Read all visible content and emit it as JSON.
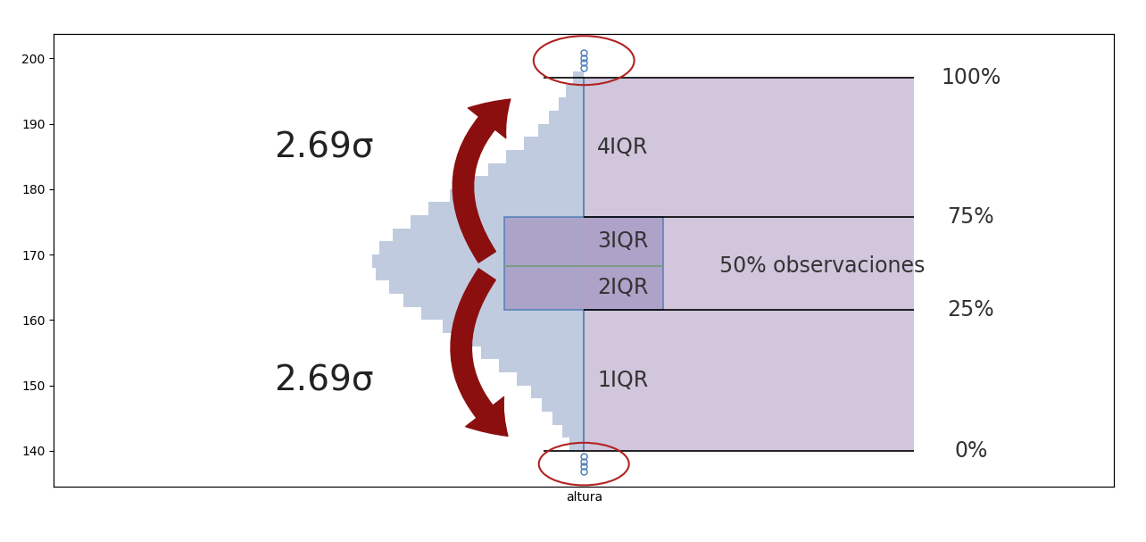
{
  "chart_data": {
    "type": "boxplot",
    "categories": [
      "altura"
    ],
    "ylim": [
      134.5,
      203.7
    ],
    "yticks": [
      140,
      150,
      160,
      170,
      180,
      190,
      200
    ],
    "grid": false,
    "tick_labels": "y",
    "box": {
      "whislo": 140,
      "q1": 161.5,
      "med": 168.3,
      "q3": 175.7,
      "whishi": 197,
      "fliers": [
        198.5,
        199.3,
        200.1,
        200.8,
        136.8,
        137.6,
        138.4,
        139.1
      ]
    },
    "histogram": {
      "bins": [
        140,
        142,
        144,
        146,
        148,
        150,
        152,
        154,
        156,
        158,
        160,
        162,
        164,
        166,
        168,
        170,
        172,
        174,
        176,
        178,
        180,
        182,
        184,
        186,
        188,
        190,
        192,
        194,
        196,
        198
      ],
      "counts": [
        4,
        6,
        9,
        12,
        15,
        19,
        24,
        29,
        35,
        40,
        46,
        51,
        55,
        59,
        60,
        58,
        54,
        49,
        44,
        38,
        32,
        27,
        22,
        17,
        13,
        10,
        7,
        5,
        3
      ],
      "xlim": [
        150,
        -150
      ],
      "color": "#b9c6dc"
    },
    "annotations": {
      "sigma": [
        "2.69σ",
        "2.69σ"
      ],
      "iqr": [
        "1IQR",
        "2IQR",
        "3IQR",
        "4IQR"
      ],
      "percent": [
        "0%",
        "25%",
        "75%",
        "100%"
      ],
      "box_label": "50% observaciones"
    }
  }
}
